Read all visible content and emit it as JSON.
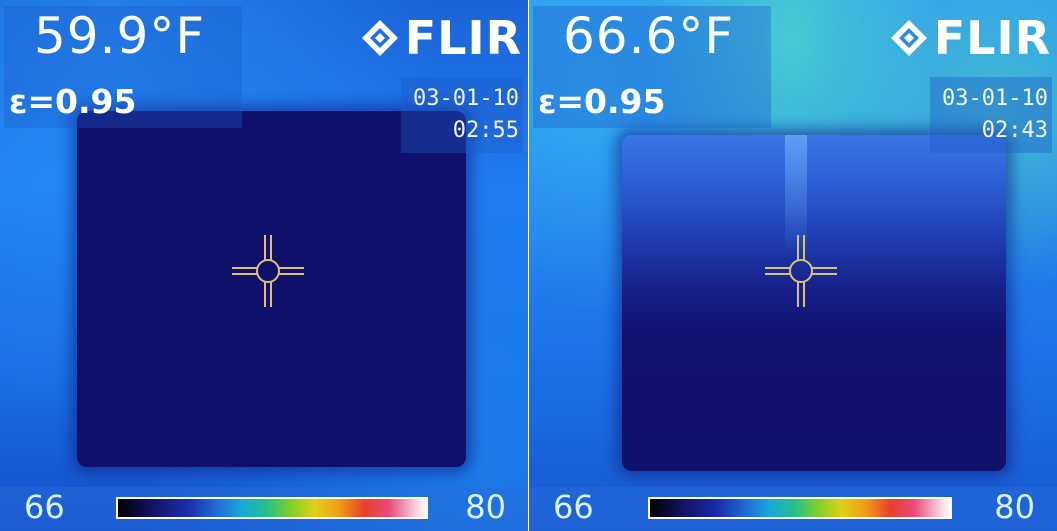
{
  "images": [
    {
      "temperature": "59.9°F",
      "emissivity": "ε=0.95",
      "brand": "FLIR",
      "date": "03-01-10",
      "time": "02:55",
      "scale_min": "66",
      "scale_max": "80"
    },
    {
      "temperature": "66.6°F",
      "emissivity": "ε=0.95",
      "brand": "FLIR",
      "date": "03-01-10",
      "time": "02:43",
      "scale_min": "66",
      "scale_max": "80"
    }
  ],
  "colors": {
    "hot_frame": "#1f7cf0",
    "cold_surface": "#10106a",
    "overlay_text": "#ffffff",
    "crosshair": "#d9c07a"
  },
  "icons": {
    "brand_logo": "flir-diamond-logo",
    "spot_meter": "crosshair-icon"
  }
}
